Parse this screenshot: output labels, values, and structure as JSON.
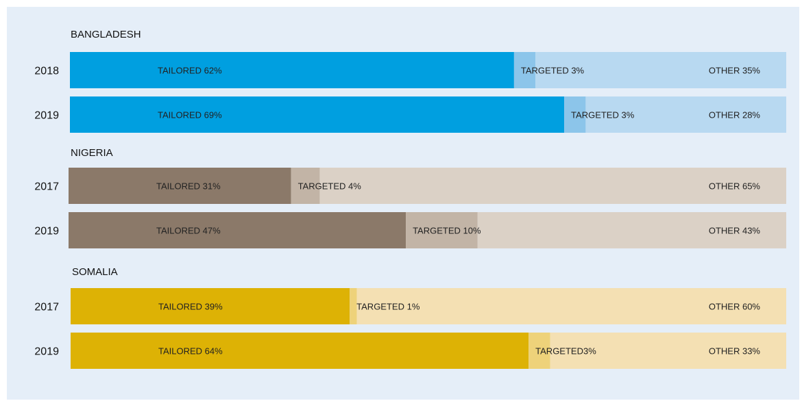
{
  "chart_data": {
    "type": "bar",
    "stacked": true,
    "orientation": "horizontal",
    "groups": [
      {
        "name": "BANGLADESH",
        "palette": {
          "tailored": "#009fe0",
          "targeted": "#8cc5ea",
          "other": "#b8d9f1"
        },
        "rows": [
          {
            "year": "2018",
            "segments": [
              {
                "key": "tailored",
                "label": "TAILORED 62%",
                "value": 62
              },
              {
                "key": "targeted",
                "label": "TARGETED 3%",
                "value": 3
              },
              {
                "key": "other",
                "label": "OTHER 35%",
                "value": 35
              }
            ]
          },
          {
            "year": "2019",
            "segments": [
              {
                "key": "tailored",
                "label": "TAILORED 69%",
                "value": 69
              },
              {
                "key": "targeted",
                "label": "TARGETED 3%",
                "value": 3
              },
              {
                "key": "other",
                "label": "OTHER 28%",
                "value": 28
              }
            ]
          }
        ]
      },
      {
        "name": "NIGERIA",
        "palette": {
          "tailored": "#8b7969",
          "targeted": "#c2b4a6",
          "other": "#dbd1c6"
        },
        "rows": [
          {
            "year": "2017",
            "segments": [
              {
                "key": "tailored",
                "label": "TAILORED 31%",
                "value": 31
              },
              {
                "key": "targeted",
                "label": "TARGETED 4%",
                "value": 4
              },
              {
                "key": "other",
                "label": "OTHER 65%",
                "value": 65
              }
            ]
          },
          {
            "year": "2019",
            "segments": [
              {
                "key": "tailored",
                "label": "TAILORED 47%",
                "value": 47
              },
              {
                "key": "targeted",
                "label": "TARGETED 10%",
                "value": 10
              },
              {
                "key": "other",
                "label": "OTHER 43%",
                "value": 43
              }
            ]
          }
        ]
      },
      {
        "name": "SOMALIA",
        "palette": {
          "tailored": "#ddb205",
          "targeted": "#eed27a",
          "other": "#f4e0b3"
        },
        "rows": [
          {
            "year": "2017",
            "segments": [
              {
                "key": "tailored",
                "label": "TAILORED 39%",
                "value": 39
              },
              {
                "key": "targeted",
                "label": "TARGETED 1%",
                "value": 1
              },
              {
                "key": "other",
                "label": "OTHER 60%",
                "value": 60
              }
            ]
          },
          {
            "year": "2019",
            "segments": [
              {
                "key": "tailored",
                "label": "TAILORED 64%",
                "value": 64
              },
              {
                "key": "targeted",
                "label": "TARGETED3%",
                "value": 3
              },
              {
                "key": "other",
                "label": "OTHER 33%",
                "value": 33
              }
            ]
          }
        ]
      }
    ]
  }
}
